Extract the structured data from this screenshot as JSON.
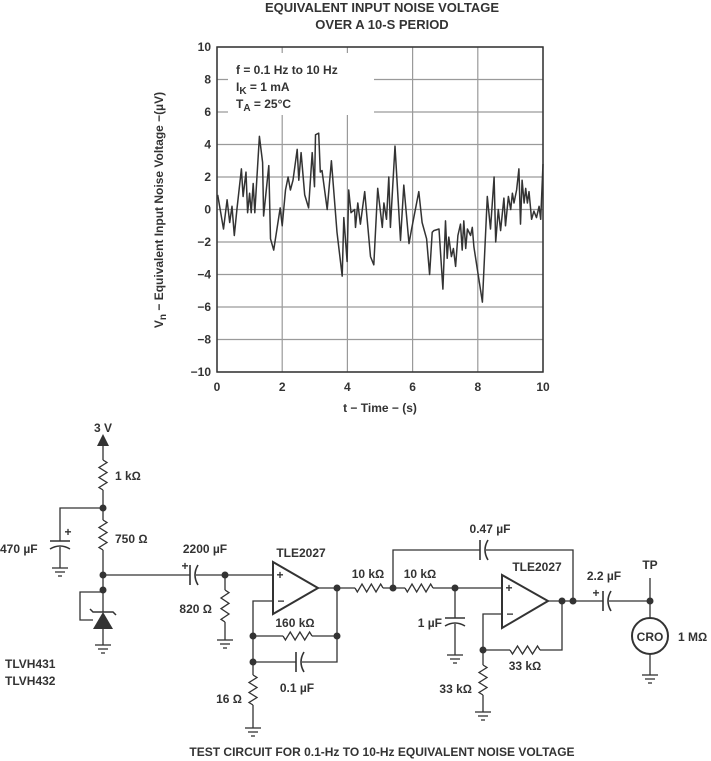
{
  "chart_data": {
    "type": "line",
    "title": [
      "EQUIVALENT INPUT NOISE VOLTAGE",
      "OVER A 10-S PERIOD"
    ],
    "xlabel": "t − Time − (s)",
    "ylabel": {
      "symbol": "V",
      "subscript": "n",
      "text": " − Equivalent Input Noise Voltage −(µV)"
    },
    "xlim": [
      0,
      10
    ],
    "ylim": [
      -10,
      10
    ],
    "xticks": [
      0,
      2,
      4,
      6,
      8,
      10
    ],
    "yticks": [
      -10,
      -8,
      -6,
      -4,
      -2,
      0,
      2,
      4,
      6,
      8,
      10
    ],
    "grid": true,
    "line_color": "#333333",
    "grid_color": "#9a9a9a",
    "annotations": [
      {
        "main": "f = 0.1 Hz to 10 Hz",
        "sub": "",
        "rest": ""
      },
      {
        "main": "I",
        "sub": "K",
        "rest": " = 1 mA"
      },
      {
        "main": "T",
        "sub": "A",
        "rest": " = 25°C"
      }
    ],
    "series": [
      {
        "x": [
          0.02,
          0.2,
          0.31,
          0.39,
          0.46,
          0.53,
          0.61,
          0.75,
          0.8,
          0.89,
          0.94,
          1.0,
          1.05,
          1.11,
          1.16,
          1.3,
          1.4,
          1.43,
          1.59,
          1.64,
          1.74,
          1.94,
          2.0,
          2.1,
          2.18,
          2.25,
          2.33,
          2.46,
          2.51,
          2.58,
          2.69,
          2.81,
          2.92,
          2.99,
          3.02,
          3.12,
          3.17,
          3.22,
          3.38,
          3.51,
          3.68,
          3.84,
          3.89,
          3.99,
          4.04,
          4.11,
          4.22,
          4.25,
          4.32,
          4.4,
          4.53,
          4.71,
          4.81,
          4.93,
          5.07,
          5.12,
          5.2,
          5.27,
          5.32,
          5.46,
          5.63,
          5.73,
          5.89,
          5.96,
          6.19,
          6.29,
          6.43,
          6.52,
          6.6,
          6.65,
          6.81,
          6.93,
          7.01,
          7.06,
          7.11,
          7.19,
          7.25,
          7.32,
          7.39,
          7.47,
          7.52,
          7.57,
          7.63,
          7.68,
          7.78,
          7.83,
          7.88,
          8.14,
          8.29,
          8.39,
          8.5,
          8.55,
          8.63,
          8.7,
          8.8,
          8.85,
          8.94,
          9.01,
          9.06,
          9.11,
          9.19,
          9.26,
          9.31,
          9.36,
          9.42,
          9.47,
          9.52,
          9.57,
          9.65,
          9.72,
          9.8,
          9.88,
          9.93,
          10.0
        ],
        "y": [
          0.9,
          -1.2,
          0.6,
          -0.8,
          0.2,
          -1.6,
          0.0,
          2.5,
          0.8,
          2.3,
          -0.2,
          1.0,
          -0.2,
          1.6,
          -0.2,
          4.5,
          2.9,
          -0.4,
          2.7,
          -1.8,
          -2.5,
          0.1,
          -1.0,
          1.2,
          2.0,
          1.2,
          1.8,
          3.7,
          1.8,
          3.5,
          0.9,
          0.1,
          3.5,
          1.4,
          4.6,
          4.7,
          2.3,
          2.4,
          0.0,
          3.0,
          -1.4,
          -4.1,
          -0.5,
          -3.2,
          1.2,
          -0.2,
          0.0,
          -1.1,
          0.4,
          -0.9,
          1.1,
          -2.9,
          -3.4,
          1.3,
          -1.1,
          0.4,
          -0.6,
          2.0,
          -1.1,
          3.9,
          -1.9,
          1.5,
          -2.1,
          -1.3,
          1.1,
          -0.8,
          -1.8,
          -4.0,
          -1.4,
          -1.3,
          -1.2,
          -4.9,
          -0.7,
          -3.0,
          -1.7,
          -2.9,
          -2.4,
          -3.5,
          -1.6,
          -0.9,
          -2.5,
          -0.7,
          -2.4,
          -1.2,
          -1.6,
          -1.1,
          -2.3,
          -5.7,
          0.8,
          -1.2,
          2.0,
          -2.0,
          0.0,
          -1.3,
          0.7,
          -1.0,
          0.8,
          0.0,
          1.0,
          0.4,
          1.2,
          2.5,
          -0.9,
          1.8,
          0.4,
          1.3,
          0.4,
          1.1,
          -0.6,
          -0.1,
          -0.5,
          0.2,
          -0.6,
          2.8
        ]
      }
    ]
  },
  "circuit": {
    "supply": "3 V",
    "r1": "1 kΩ",
    "r2": "750 Ω",
    "c1": "470 µF",
    "c2": "2200 µF",
    "r3": "820 Ω",
    "ref_part": [
      "TLVH431",
      "TLVH432"
    ],
    "opamp1": "TLE2027",
    "r4": "160 kΩ",
    "c3": "0.1 µF",
    "r5": "16 Ω",
    "r6": "10 kΩ",
    "r7": "10 kΩ",
    "c4": "0.47 µF",
    "c5": "1 µF",
    "opamp2": "TLE2027",
    "r8": "33 kΩ",
    "r9": "33 kΩ",
    "c6": "2.2 µF",
    "tp": "TP",
    "cro": "CRO",
    "cro_r": "1 MΩ",
    "plus": "+",
    "minus": "−",
    "caption": "TEST CIRCUIT FOR 0.1-Hz TO 10-Hz EQUIVALENT NOISE VOLTAGE"
  }
}
